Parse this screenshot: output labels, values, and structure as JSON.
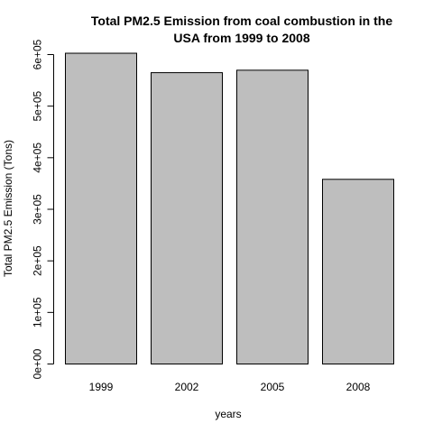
{
  "chart_data": {
    "type": "bar",
    "title_lines": [
      "Total PM2.5 Emission from coal combustion in the",
      "USA from 1999 to 2008"
    ],
    "xlabel": "years",
    "ylabel": "Total PM2.5 Emission (Tons)",
    "categories": [
      "1999",
      "2002",
      "2005",
      "2008"
    ],
    "values": [
      602600,
      564900,
      569700,
      358100
    ],
    "ylim": [
      0,
      600000
    ],
    "yticks": [
      0,
      100000,
      200000,
      300000,
      400000,
      500000,
      600000
    ],
    "ytick_labels": [
      "0e+00",
      "1e+05",
      "2e+05",
      "3e+05",
      "4e+05",
      "5e+05",
      "6e+05"
    ],
    "bar_color": "#bebebe",
    "bar_border_color": "#000000",
    "grid": false,
    "legend": "none"
  }
}
